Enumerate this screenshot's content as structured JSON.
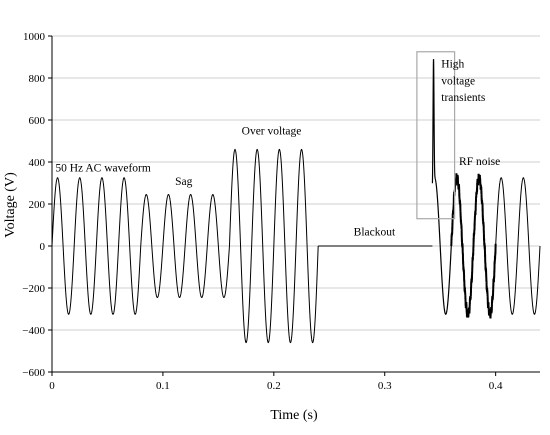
{
  "chart_data": {
    "type": "line",
    "title": "",
    "xlabel": "Time (s)",
    "ylabel": "Voltage (V)",
    "xlim": [
      0,
      0.44
    ],
    "ylim": [
      -600,
      1000
    ],
    "grid": "horizontal",
    "x_ticks": [
      0,
      0.1,
      0.2,
      0.3,
      0.4
    ],
    "x_tick_labels": [
      "0",
      "0.1",
      "0.2",
      "0.3",
      "0.4"
    ],
    "y_ticks": [
      -600,
      -400,
      -200,
      0,
      200,
      400,
      600,
      800,
      1000
    ],
    "y_tick_labels": [
      "−600",
      "−400",
      "−200",
      "0",
      "200",
      "400",
      "600",
      "800",
      "1000"
    ],
    "series": [
      {
        "frequency_hz": 50,
        "segments": [
          {
            "label": "50 Hz AC waveform",
            "x_start": 0.0,
            "x_end": 0.08,
            "amplitude": 325
          },
          {
            "label": "Sag",
            "x_start": 0.08,
            "x_end": 0.16,
            "amplitude": 245
          },
          {
            "label": "Over voltage",
            "x_start": 0.16,
            "x_end": 0.24,
            "amplitude": 460
          },
          {
            "label": "Blackout",
            "x_start": 0.24,
            "x_end": 0.343,
            "amplitude": 0
          },
          {
            "label": "High voltage transients",
            "x_start": 0.343,
            "x_end": 0.36,
            "amplitude": 325,
            "spike_peak": 890,
            "spike_x": 0.344
          },
          {
            "label": "RF noise",
            "x_start": 0.36,
            "x_end": 0.4,
            "amplitude": 325,
            "noise": true
          },
          {
            "label": "",
            "x_start": 0.4,
            "x_end": 0.44,
            "amplitude": 325
          }
        ]
      }
    ],
    "annotations": [
      {
        "text": "50 Hz AC waveform",
        "x": 0.003,
        "y": 355
      },
      {
        "text": "Sag",
        "x": 0.111,
        "y": 290
      },
      {
        "text": "Over voltage",
        "x": 0.171,
        "y": 530
      },
      {
        "text": "Blackout",
        "x": 0.272,
        "y": 50
      },
      {
        "text": "High",
        "x": 0.351,
        "y": 850
      },
      {
        "text": "voltage",
        "x": 0.351,
        "y": 770
      },
      {
        "text": "transients",
        "x": 0.351,
        "y": 690
      },
      {
        "text": "RF noise",
        "x": 0.367,
        "y": 385
      }
    ],
    "highlight_box": {
      "x0": 0.329,
      "x1": 0.363,
      "y0": 130,
      "y1": 925
    }
  }
}
